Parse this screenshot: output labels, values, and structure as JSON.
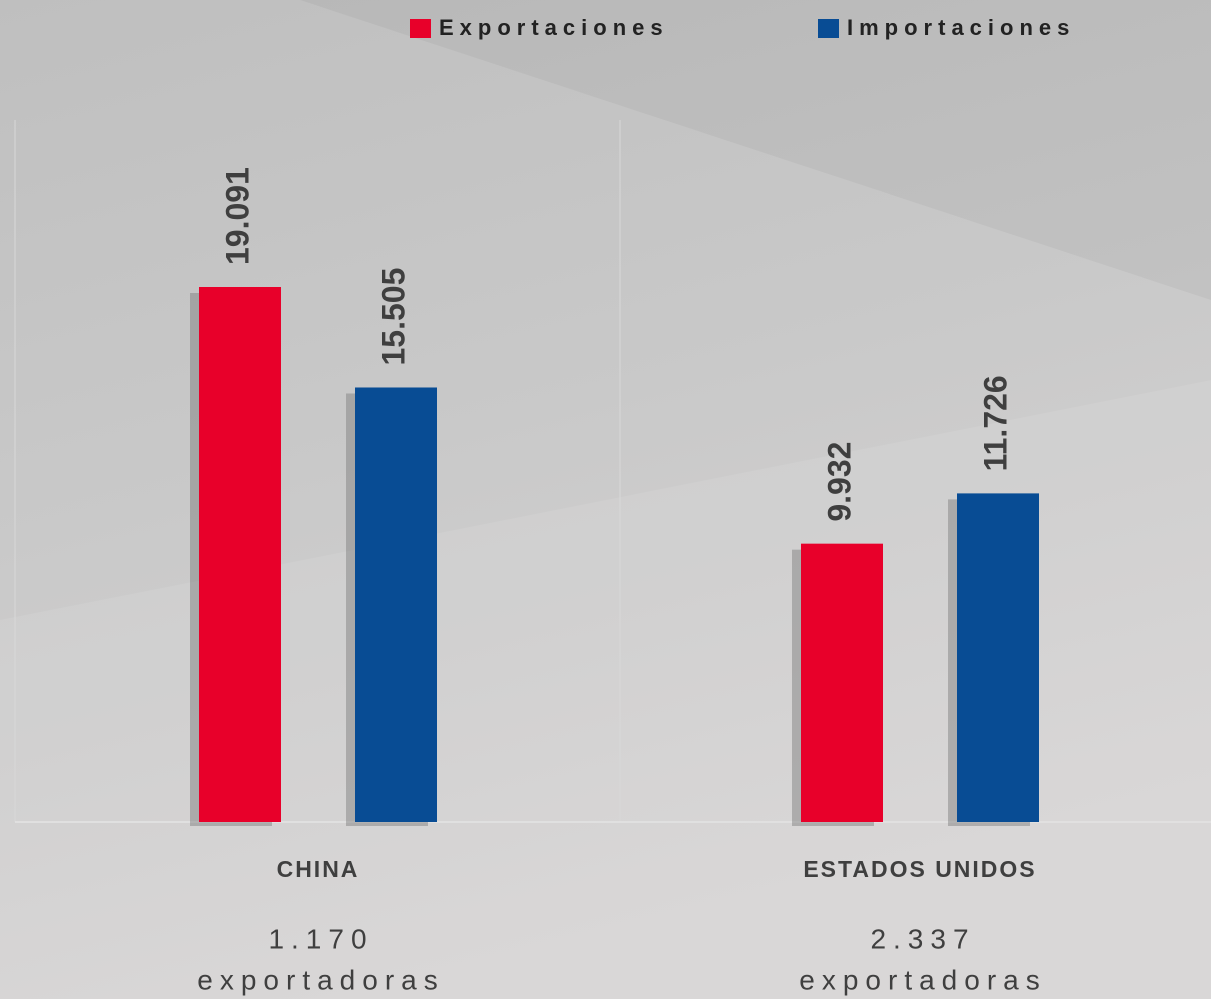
{
  "chart_data": {
    "type": "bar",
    "categories": [
      "CHINA",
      "ESTADOS UNIDOS"
    ],
    "annotations": [
      {
        "count": "1.170",
        "text": "exportadoras"
      },
      {
        "count": "2.337",
        "text": "exportadoras"
      }
    ],
    "series": [
      {
        "name": "Exportaciones",
        "color": "#e8002a",
        "values": [
          19.091,
          9.932
        ]
      },
      {
        "name": "Importaciones",
        "color": "#084c94",
        "values": [
          15.505,
          11.726
        ]
      }
    ],
    "legend": "top-right"
  }
}
